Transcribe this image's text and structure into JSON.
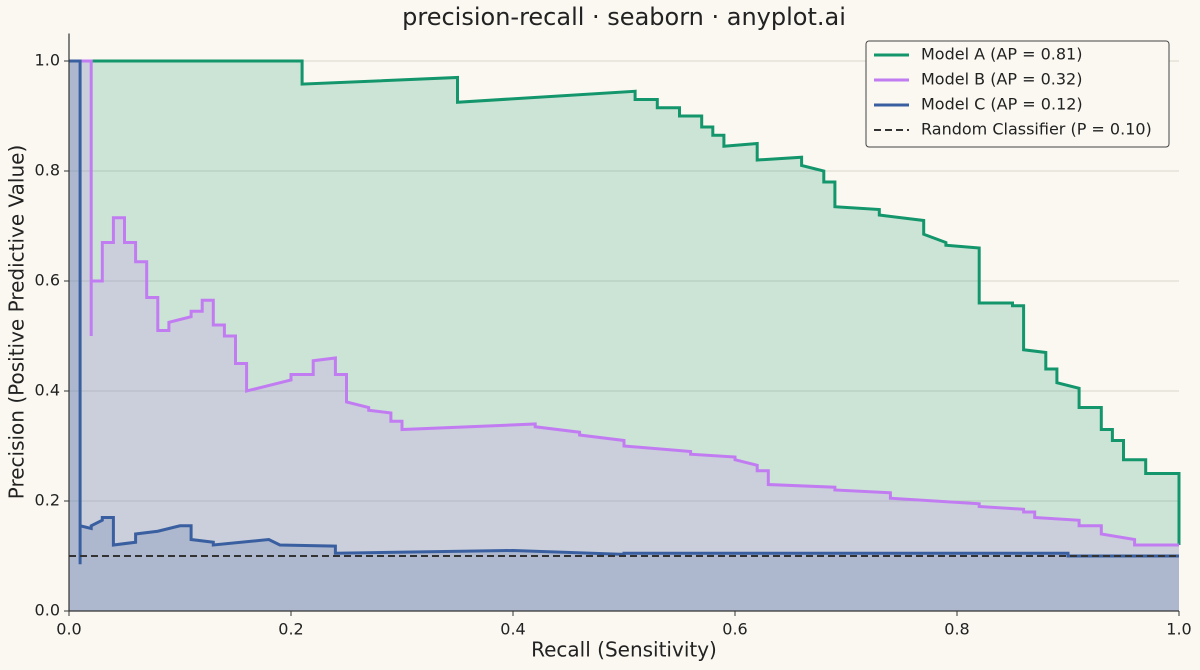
{
  "chart_data": {
    "type": "step-area",
    "title": "precision-recall · seaborn · anyplot.ai",
    "xlabel": "Recall (Sensitivity)",
    "ylabel": "Precision (Positive Predictive Value)",
    "xlim": [
      0,
      1
    ],
    "ylim": [
      0,
      1.05
    ],
    "xticks": [
      {
        "value": 0,
        "label": "0.0"
      },
      0.2,
      0.4,
      0.6,
      0.8,
      {
        "value": 1,
        "label": "1.0"
      }
    ],
    "yticks": [
      {
        "value": 0,
        "label": "0.0"
      },
      0.2,
      0.4,
      0.6,
      0.8,
      {
        "value": 1,
        "label": "1.0"
      }
    ],
    "grid": true,
    "legend": "upper right",
    "series": [
      {
        "name": "Model A (AP = 0.81)",
        "color": "#13966c",
        "x": [
          0,
          0.21,
          0.21,
          0.35,
          0.35,
          0.51,
          0.51,
          0.53,
          0.53,
          0.55,
          0.55,
          0.57,
          0.57,
          0.58,
          0.58,
          0.59,
          0.59,
          0.62,
          0.62,
          0.66,
          0.66,
          0.68,
          0.68,
          0.69,
          0.69,
          0.73,
          0.73,
          0.77,
          0.77,
          0.79,
          0.79,
          0.82,
          0.82,
          0.85,
          0.85,
          0.86,
          0.86,
          0.88,
          0.88,
          0.89,
          0.89,
          0.91,
          0.91,
          0.93,
          0.93,
          0.94,
          0.94,
          0.95,
          0.95,
          0.97,
          0.97,
          1,
          1
        ],
        "values": [
          1,
          1,
          0.958,
          0.97,
          0.925,
          0.945,
          0.93,
          0.93,
          0.915,
          0.915,
          0.9,
          0.9,
          0.88,
          0.88,
          0.865,
          0.865,
          0.845,
          0.85,
          0.82,
          0.825,
          0.81,
          0.8,
          0.78,
          0.78,
          0.735,
          0.73,
          0.72,
          0.71,
          0.685,
          0.67,
          0.665,
          0.66,
          0.56,
          0.56,
          0.555,
          0.555,
          0.475,
          0.47,
          0.44,
          0.44,
          0.415,
          0.405,
          0.37,
          0.37,
          0.33,
          0.33,
          0.31,
          0.31,
          0.275,
          0.275,
          0.25,
          0.25,
          0.12
        ]
      },
      {
        "name": "Model B (AP = 0.32)",
        "color": "#c27cf2",
        "x": [
          0,
          0.02,
          0.02,
          0.02,
          0.03,
          0.03,
          0.04,
          0.04,
          0.05,
          0.05,
          0.06,
          0.06,
          0.07,
          0.07,
          0.08,
          0.08,
          0.09,
          0.09,
          0.11,
          0.11,
          0.12,
          0.12,
          0.13,
          0.13,
          0.14,
          0.14,
          0.15,
          0.15,
          0.16,
          0.16,
          0.2,
          0.2,
          0.22,
          0.22,
          0.24,
          0.24,
          0.25,
          0.25,
          0.27,
          0.27,
          0.29,
          0.29,
          0.3,
          0.3,
          0.42,
          0.42,
          0.46,
          0.46,
          0.5,
          0.5,
          0.56,
          0.56,
          0.6,
          0.6,
          0.62,
          0.62,
          0.63,
          0.63,
          0.69,
          0.69,
          0.74,
          0.74,
          0.82,
          0.82,
          0.86,
          0.86,
          0.87,
          0.87,
          0.91,
          0.91,
          0.93,
          0.93,
          0.96,
          0.96,
          1
        ],
        "values": [
          1,
          1,
          0.5,
          0.6,
          0.6,
          0.67,
          0.67,
          0.715,
          0.715,
          0.67,
          0.67,
          0.635,
          0.635,
          0.57,
          0.57,
          0.51,
          0.51,
          0.525,
          0.535,
          0.545,
          0.545,
          0.565,
          0.565,
          0.52,
          0.52,
          0.5,
          0.5,
          0.45,
          0.45,
          0.4,
          0.42,
          0.43,
          0.43,
          0.455,
          0.46,
          0.43,
          0.43,
          0.38,
          0.37,
          0.365,
          0.36,
          0.345,
          0.345,
          0.33,
          0.34,
          0.335,
          0.325,
          0.32,
          0.31,
          0.3,
          0.29,
          0.285,
          0.28,
          0.275,
          0.265,
          0.255,
          0.255,
          0.23,
          0.225,
          0.22,
          0.215,
          0.205,
          0.195,
          0.19,
          0.185,
          0.18,
          0.18,
          0.17,
          0.165,
          0.155,
          0.155,
          0.14,
          0.13,
          0.12,
          0.12
        ]
      },
      {
        "name": "Model C (AP = 0.12)",
        "color": "#3a5fa0",
        "x": [
          0,
          0.01,
          0.01,
          0.01,
          0.02,
          0.02,
          0.03,
          0.03,
          0.04,
          0.04,
          0.06,
          0.06,
          0.08,
          0.08,
          0.1,
          0.1,
          0.11,
          0.11,
          0.13,
          0.13,
          0.18,
          0.18,
          0.19,
          0.19,
          0.24,
          0.24,
          0.4,
          0.4,
          0.5,
          0.5,
          0.9,
          0.9,
          1
        ],
        "values": [
          1,
          1,
          0.085,
          0.155,
          0.15,
          0.155,
          0.165,
          0.17,
          0.17,
          0.12,
          0.125,
          0.14,
          0.145,
          0.145,
          0.155,
          0.155,
          0.155,
          0.13,
          0.125,
          0.12,
          0.13,
          0.13,
          0.12,
          0.12,
          0.118,
          0.105,
          0.11,
          0.11,
          0.103,
          0.105,
          0.105,
          0.1,
          0.1
        ]
      }
    ],
    "reference": {
      "name": "Random Classifier (P = 0.10)",
      "value": 0.1,
      "color": "#333333"
    }
  }
}
